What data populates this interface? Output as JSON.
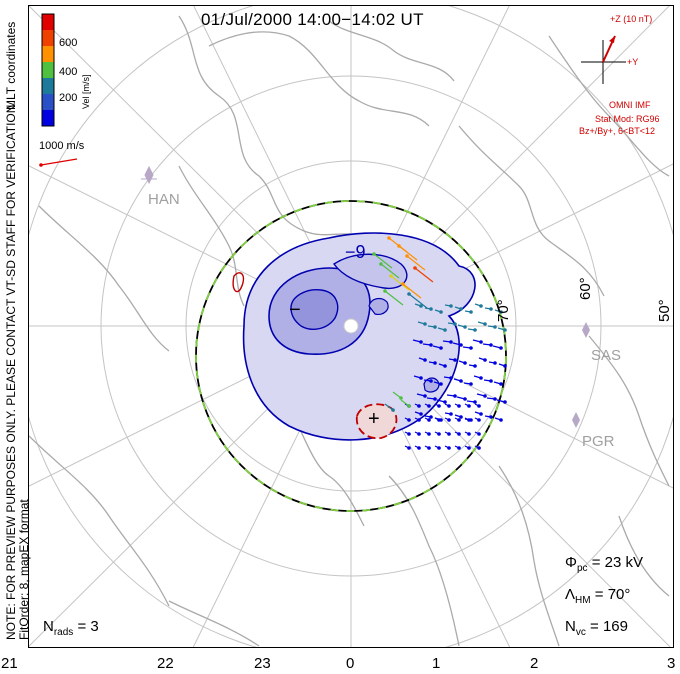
{
  "title": "01/Jul/2000 14:00−14:02 UT",
  "left_notes": {
    "coordinates": "MLT coordinates",
    "preview": "NOTE: FOR PREVIEW PURPOSES ONLY. PLEASE CONTACT VT-SD STAFF FOR VERIFICATION.",
    "fit": "FitOrder: 8, mapEX format"
  },
  "color_bar": {
    "label": "Vel [m/s]",
    "ticks": [
      "600",
      "400",
      "200"
    ],
    "colors": [
      "#0000e0",
      "#1e7a9a",
      "#50c040",
      "#d8d020",
      "#ff9000",
      "#f04000",
      "#e00000"
    ]
  },
  "velocity_scale": "1000 m/s",
  "imf": {
    "z_label": "+Z (10 nT)",
    "y_label": "+Y",
    "source": "OMNI IMF",
    "model": "Stat Mod: RG96",
    "condition": "Bz+/By+, 6<BT<12"
  },
  "latitudes": [
    "70°",
    "60°",
    "50°"
  ],
  "stations": [
    "HAN",
    "SAS",
    "PGR"
  ],
  "contours": {
    "min": "−",
    "max": "+",
    "level": "−9"
  },
  "stats": {
    "phi_label": "Φ",
    "phi_sub": "pc",
    "phi_value": "= 23 kV",
    "lambda_label": "Λ",
    "lambda_sub": "HM",
    "lambda_value": "= 70°",
    "nvc_label": "N",
    "nvc_sub": "vc",
    "nvc_value": "= 169",
    "nrads_label": "N",
    "nrads_sub": "rads",
    "nrads_value": "= 3"
  },
  "mlt_ticks": [
    "21",
    "22",
    "23",
    "0",
    "1",
    "2",
    "3"
  ],
  "colors": {
    "frame": "#000000",
    "grid": "#c0c0c0",
    "land": "#a8a8a8",
    "neg_fill": "#d8d8f0",
    "neg_line": "#0000b0",
    "pos_fill": "#f0d8d8",
    "pos_line": "#c00000",
    "boundary_green": "#80d040"
  }
}
